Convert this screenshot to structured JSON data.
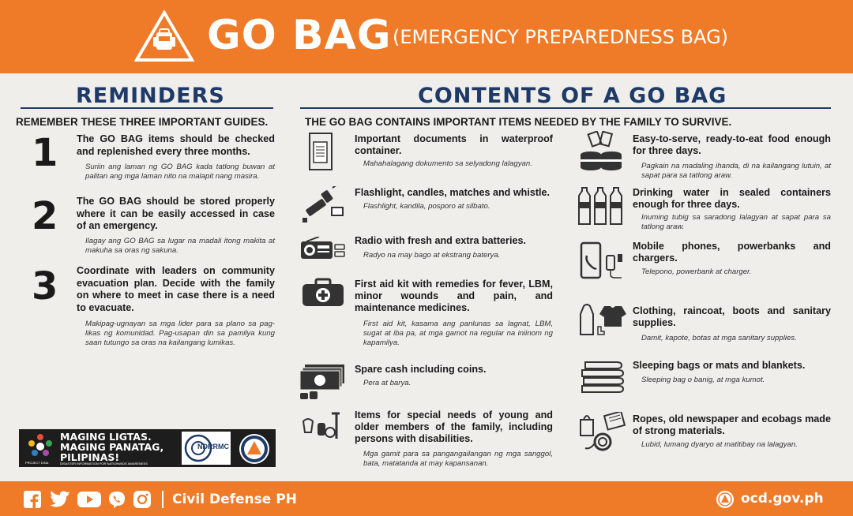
{
  "header": {
    "title": "GO BAG",
    "subtitle": "(EMERGENCY PREPAREDNESS BAG)"
  },
  "reminders": {
    "title": "REMINDERS",
    "subtitle": "REMEMBER THESE THREE IMPORTANT GUIDES.",
    "items": [
      {
        "number": "1",
        "text": "The GO BAG items should be checked and replenished every three months.",
        "translation": "Suriin ang laman ng GO BAG kada tatlong buwan at palitan ang mga laman nito na malapit nang masira."
      },
      {
        "number": "2",
        "text": "The GO BAG should be stored properly where it can be easily accessed in case of an emergency.",
        "translation": "Ilagay ang GO BAG sa lugar na madali itong makita at makuha sa oras ng sakuna."
      },
      {
        "number": "3",
        "text": "Coordinate with leaders on community evacuation plan. Decide with the family on where to meet in case there is a need to evacuate.",
        "translation": "Makipag-ugnayan sa mga lider para sa plano sa pag-likas ng komunidad. Pag-usapan din sa pamilya kung saan tutungo sa oras na kailangang lumikas."
      }
    ]
  },
  "contents": {
    "title": "CONTENTS OF A GO BAG",
    "subtitle": "THE GO BAG CONTAINS IMPORTANT ITEMS NEEDED BY THE FAMILY TO SURVIVE.",
    "left": [
      {
        "icon": "documents-icon",
        "text": "Important documents in waterproof container.",
        "translation": "Mahahalagang dokumento sa selyadong lalagyan."
      },
      {
        "icon": "flashlight-icon",
        "text": "Flashlight, candles, matches and whistle.",
        "translation": "Flashlight, kandila, posporo at silbato."
      },
      {
        "icon": "radio-icon",
        "text": "Radio with fresh and extra batteries.",
        "translation": "Radyo na may bago at ekstrang baterya."
      },
      {
        "icon": "first-aid-kit-icon",
        "text": "First aid kit with remedies for fever, LBM, minor wounds and pain, and maintenance medicines.",
        "translation": "First aid kit, kasama ang panlunas sa lagnat, LBM, sugat at iba pa, at mga gamot na regular na iniinom ng kapamilya."
      },
      {
        "icon": "cash-icon",
        "text": "Spare cash including coins.",
        "translation": "Pera at barya."
      },
      {
        "icon": "special-needs-icon",
        "text": "Items for special needs of young and older members of the family, including persons with disabilities.",
        "translation": "Mga gamit para sa pangangailangan ng mga sanggol, bata, matatanda at may kapansanan."
      }
    ],
    "right": [
      {
        "icon": "canned-food-icon",
        "text": "Easy-to-serve, ready-to-eat food enough for three days.",
        "translation": "Pagkain na madaling ihanda, di na kailangang lutuin, at sapat para sa tatlong araw."
      },
      {
        "icon": "water-bottles-icon",
        "text": "Drinking water in sealed containers enough for three days.",
        "translation": "Inuming tubig sa saradong lalagyan at sapat para sa tatlong araw."
      },
      {
        "icon": "mobile-phone-icon",
        "text": "Mobile phones, powerbanks and chargers.",
        "translation": "Telepono, powerbank at charger."
      },
      {
        "icon": "clothing-icon",
        "text": "Clothing, raincoat, boots and sanitary supplies.",
        "translation": "Damit, kapote, botas at mga sanitary supplies."
      },
      {
        "icon": "sleeping-bag-icon",
        "text": "Sleeping bags or mats and blankets.",
        "translation": "Sleeping bag o banig, at mga kumot."
      },
      {
        "icon": "ropes-icon",
        "text": "Ropes, old newspaper and ecobags made of strong materials.",
        "translation": "Lubid, lumang dyaryo at matitibay na lalagyan."
      }
    ]
  },
  "campaign": {
    "slogan": "MAGING LIGTAS. MAGING PANATAG, PILIPINAS!",
    "slogan_sub": "DISASTER INFORMATION FOR NATIONWIDE AWARENESS",
    "project": "PROJECT DINA",
    "ndrrmc_label": "NDRRMC"
  },
  "footer": {
    "brand": "Civil Defense PH",
    "site": "ocd.gov.ph",
    "social_icons": [
      "facebook-icon",
      "twitter-icon",
      "youtube-icon",
      "viber-icon",
      "instagram-icon"
    ]
  },
  "colors": {
    "orange": "#ef7a28",
    "navy": "#1e3a68",
    "background": "#f0eeeb"
  }
}
